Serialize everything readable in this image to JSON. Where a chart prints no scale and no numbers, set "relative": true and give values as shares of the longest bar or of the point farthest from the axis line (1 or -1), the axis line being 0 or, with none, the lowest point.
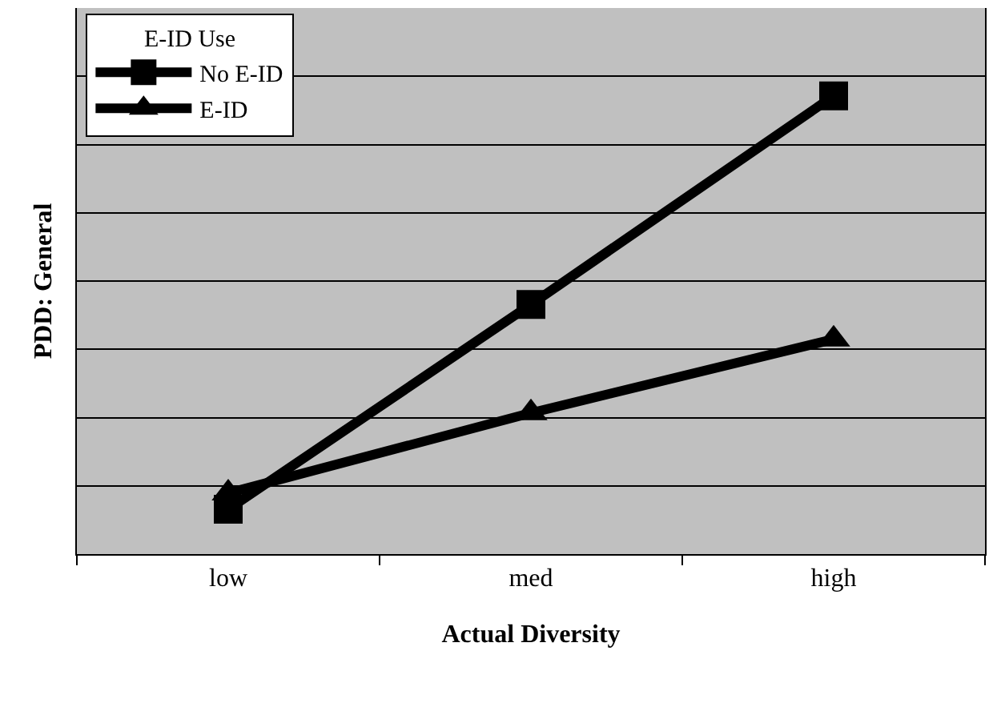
{
  "chart_data": {
    "type": "line",
    "relative": true,
    "xlabel": "Actual Diversity",
    "ylabel": "PDD: General",
    "legend_title": "E-ID Use",
    "legend": "top left",
    "grid": "y",
    "categories": [
      "low",
      "med",
      "high"
    ],
    "series": [
      {
        "name": "No E-ID",
        "color": "#000000",
        "marker": "square",
        "values": [
          0.098,
          0.545,
          1.0
        ]
      },
      {
        "name": "E-ID",
        "color": "#000000",
        "marker": "triangle",
        "values": [
          0.133,
          0.308,
          0.469
        ]
      }
    ]
  }
}
